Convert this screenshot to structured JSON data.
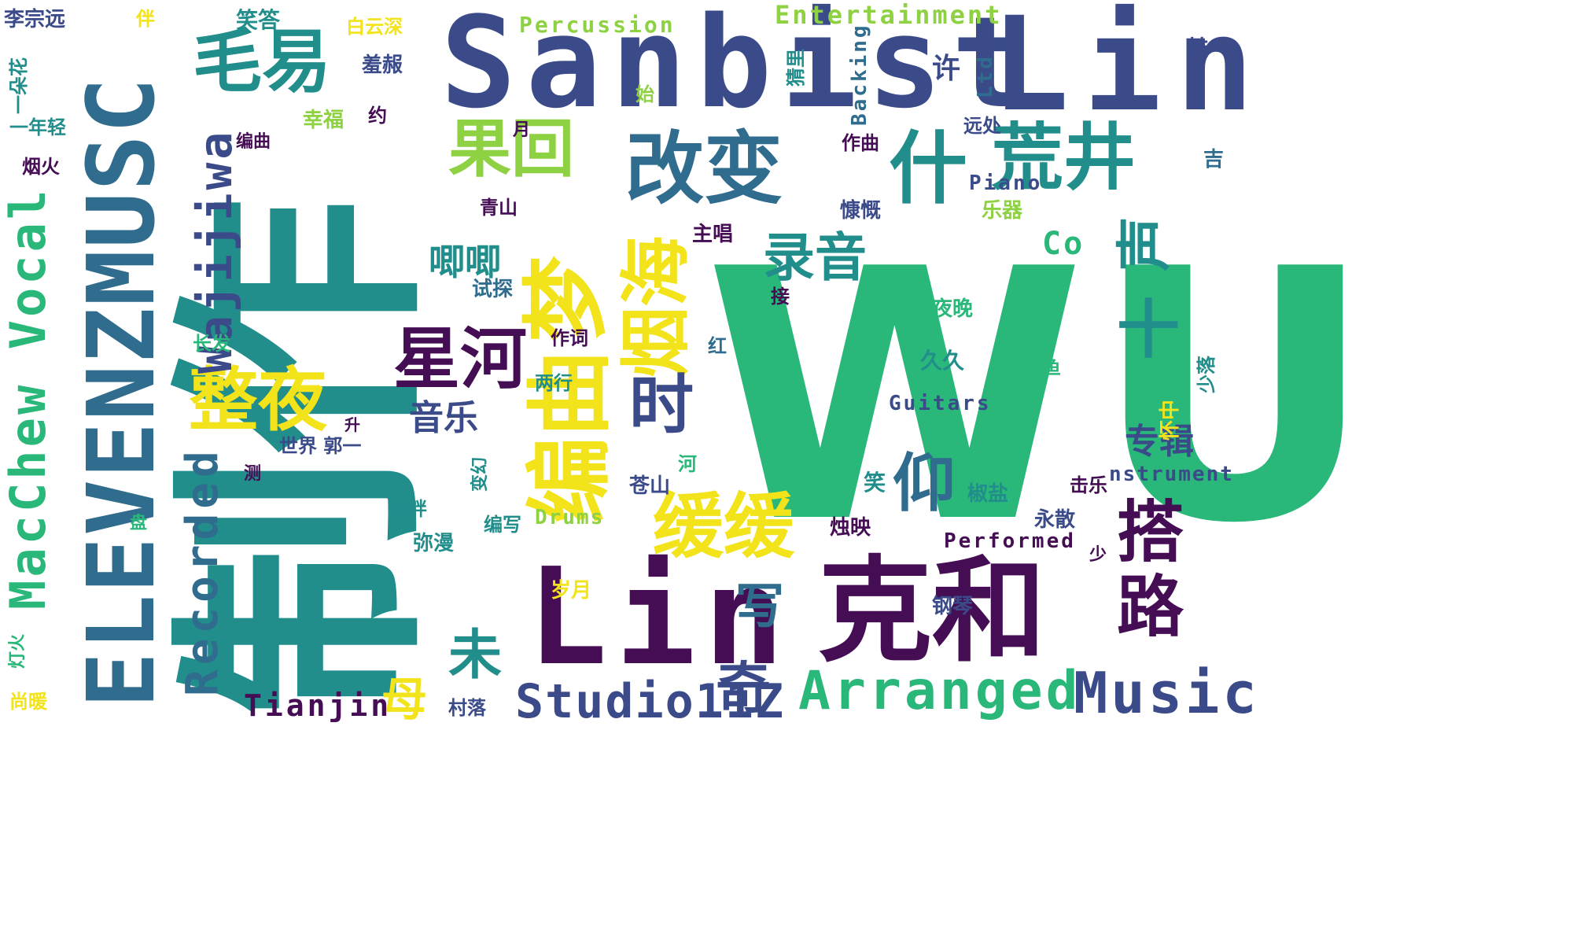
{
  "colors": {
    "background": "#ffffff",
    "dark_purple": "#440d54",
    "indigo": "#3b4b8a",
    "slate": "#2f6c8e",
    "teal": "#218e8c",
    "green": "#2ab77a",
    "lime": "#8ed142",
    "yellow": "#f2e31a"
  },
  "words": [
    {
      "text": "WU",
      "color": "green"
    },
    {
      "text": "制作",
      "color": "teal"
    },
    {
      "text": "Sanbist",
      "color": "indigo"
    },
    {
      "text": "Lin",
      "color": "indigo"
    },
    {
      "text": "ELEVENZMUSC",
      "color": "slate"
    },
    {
      "text": "Lin",
      "color": "dark_purple"
    },
    {
      "text": "克和",
      "color": "dark_purple"
    },
    {
      "text": "改变",
      "color": "slate"
    },
    {
      "text": "什",
      "color": "teal"
    },
    {
      "text": "荒井",
      "color": "teal"
    },
    {
      "text": "果回",
      "color": "lime"
    },
    {
      "text": "毛易",
      "color": "teal"
    },
    {
      "text": "梦",
      "color": "yellow"
    },
    {
      "text": "编曲",
      "color": "yellow"
    },
    {
      "text": "烟海",
      "color": "yellow"
    },
    {
      "text": "星河",
      "color": "dark_purple"
    },
    {
      "text": "整夜",
      "color": "yellow"
    },
    {
      "text": "缓缓",
      "color": "yellow"
    },
    {
      "text": "时",
      "color": "indigo"
    },
    {
      "text": "录音",
      "color": "teal"
    },
    {
      "text": "十",
      "color": "teal"
    },
    {
      "text": "声",
      "color": "teal"
    },
    {
      "text": "路",
      "color": "dark_purple"
    },
    {
      "text": "搭",
      "color": "dark_purple"
    },
    {
      "text": "仰",
      "color": "slate"
    },
    {
      "text": "Arranged",
      "color": "green"
    },
    {
      "text": "Music",
      "color": "indigo"
    },
    {
      "text": "Studio11Z",
      "color": "indigo"
    },
    {
      "text": "Recorded",
      "color": "slate"
    },
    {
      "text": "Wajijiwa",
      "color": "indigo"
    },
    {
      "text": "MacChew Vocal",
      "color": "green"
    },
    {
      "text": "Entertainment",
      "color": "lime"
    },
    {
      "text": "Percussion",
      "color": "lime"
    },
    {
      "text": "Backing",
      "color": "slate"
    },
    {
      "text": "Ltd",
      "color": "slate"
    },
    {
      "text": "Piano",
      "color": "indigo"
    },
    {
      "text": "Co",
      "color": "green"
    },
    {
      "text": "Guitars",
      "color": "indigo"
    },
    {
      "text": "nstrument",
      "color": "indigo"
    },
    {
      "text": "Performed",
      "color": "dark_purple"
    },
    {
      "text": "Tianjin",
      "color": "dark_purple"
    },
    {
      "text": "Drums",
      "color": "lime"
    },
    {
      "text": "专辑",
      "color": "indigo"
    },
    {
      "text": "音乐",
      "color": "indigo"
    },
    {
      "text": "唧唧",
      "color": "teal"
    },
    {
      "text": "未",
      "color": "teal"
    },
    {
      "text": "写",
      "color": "slate"
    },
    {
      "text": "奇",
      "color": "indigo"
    },
    {
      "text": "母",
      "color": "yellow"
    },
    {
      "text": "许",
      "color": "indigo"
    },
    {
      "text": "鼓",
      "color": "indigo"
    },
    {
      "text": "吉",
      "color": "slate"
    },
    {
      "text": "怀中",
      "color": "yellow"
    },
    {
      "text": "少落",
      "color": "teal"
    },
    {
      "text": "鱼",
      "color": "green"
    },
    {
      "text": "笑",
      "color": "teal"
    },
    {
      "text": "击乐",
      "color": "dark_purple"
    },
    {
      "text": "椒盐",
      "color": "teal"
    },
    {
      "text": "永散",
      "color": "indigo"
    },
    {
      "text": "少",
      "color": "dark_purple"
    },
    {
      "text": "钢琴",
      "color": "indigo"
    },
    {
      "text": "烛映",
      "color": "dark_purple"
    },
    {
      "text": "岁月",
      "color": "yellow"
    },
    {
      "text": "久久",
      "color": "teal"
    },
    {
      "text": "夜晚",
      "color": "green"
    },
    {
      "text": "接",
      "color": "dark_purple"
    },
    {
      "text": "主唱",
      "color": "dark_purple"
    },
    {
      "text": "慷慨",
      "color": "indigo"
    },
    {
      "text": "作曲",
      "color": "dark_purple"
    },
    {
      "text": "远处",
      "color": "indigo"
    },
    {
      "text": "乐器",
      "color": "lime"
    },
    {
      "text": "猜里",
      "color": "teal"
    },
    {
      "text": "始",
      "color": "lime"
    },
    {
      "text": "月",
      "color": "dark_purple"
    },
    {
      "text": "约",
      "color": "dark_purple"
    },
    {
      "text": "幸福",
      "color": "lime"
    },
    {
      "text": "羞赧",
      "color": "indigo"
    },
    {
      "text": "白云深",
      "color": "yellow"
    },
    {
      "text": "笑答",
      "color": "teal"
    },
    {
      "text": "伴",
      "color": "yellow"
    },
    {
      "text": "李宗远",
      "color": "indigo"
    },
    {
      "text": "一朵花",
      "color": "teal"
    },
    {
      "text": "一年轻",
      "color": "teal"
    },
    {
      "text": "烟火",
      "color": "dark_purple"
    },
    {
      "text": "编曲",
      "color": "dark_purple"
    },
    {
      "text": "青山",
      "color": "dark_purple"
    },
    {
      "text": "试探",
      "color": "slate"
    },
    {
      "text": "作词",
      "color": "dark_purple"
    },
    {
      "text": "长发",
      "color": "green"
    },
    {
      "text": "红",
      "color": "slate"
    },
    {
      "text": "两行",
      "color": "teal"
    },
    {
      "text": "升",
      "color": "dark_purple"
    },
    {
      "text": "世界 郭一",
      "color": "indigo"
    },
    {
      "text": "变幻",
      "color": "teal"
    },
    {
      "text": "河",
      "color": "green"
    },
    {
      "text": "测",
      "color": "dark_purple"
    },
    {
      "text": "苍山",
      "color": "indigo"
    },
    {
      "text": "水畔",
      "color": "teal"
    },
    {
      "text": "编写",
      "color": "teal"
    },
    {
      "text": "弥漫",
      "color": "teal"
    },
    {
      "text": "盘",
      "color": "green"
    },
    {
      "text": "灯火",
      "color": "green"
    },
    {
      "text": "尚暖",
      "color": "yellow"
    },
    {
      "text": "村落",
      "color": "indigo"
    }
  ]
}
